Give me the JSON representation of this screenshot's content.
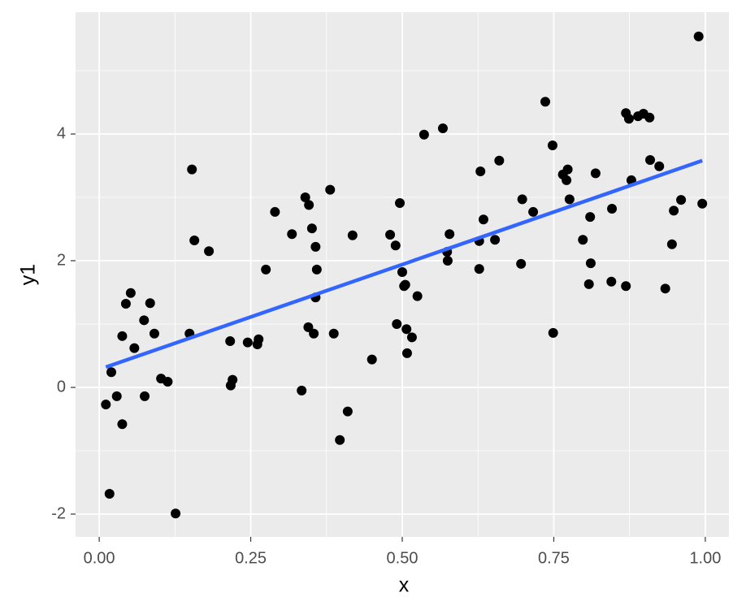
{
  "chart_data": {
    "type": "scatter",
    "x_label": "x",
    "y_label": "y1",
    "xlim": [
      -0.039,
      1.039
    ],
    "ylim": [
      -2.359,
      5.923
    ],
    "xticks": [
      {
        "value": 0,
        "label": "0.00"
      },
      {
        "value": 0.25,
        "label": "0.25"
      },
      {
        "value": 0.5,
        "label": "0.50"
      },
      {
        "value": 0.75,
        "label": "0.75"
      },
      {
        "value": 1,
        "label": "1.00"
      }
    ],
    "yticks": [
      -2,
      0,
      2,
      4
    ],
    "xminor": [
      0.125,
      0.375,
      0.625,
      0.875
    ],
    "yminor": [
      -1,
      1,
      3,
      5
    ],
    "grid": true,
    "color": "#000000",
    "x": [
      0.011,
      0.02,
      0.017,
      0.029,
      0.038,
      0.038,
      0.044,
      0.052,
      0.058,
      0.074,
      0.075,
      0.084,
      0.091,
      0.102,
      0.113,
      0.126,
      0.149,
      0.153,
      0.157,
      0.181,
      0.216,
      0.217,
      0.22,
      0.245,
      0.261,
      0.263,
      0.275,
      0.29,
      0.318,
      0.334,
      0.34,
      0.345,
      0.346,
      0.351,
      0.354,
      0.357,
      0.357,
      0.359,
      0.381,
      0.387,
      0.397,
      0.41,
      0.418,
      0.45,
      0.48,
      0.489,
      0.491,
      0.496,
      0.5,
      0.503,
      0.505,
      0.507,
      0.508,
      0.516,
      0.525,
      0.536,
      0.567,
      0.574,
      0.575,
      0.578,
      0.627,
      0.627,
      0.629,
      0.634,
      0.653,
      0.66,
      0.696,
      0.698,
      0.716,
      0.736,
      0.748,
      0.749,
      0.765,
      0.771,
      0.773,
      0.776,
      0.798,
      0.808,
      0.81,
      0.811,
      0.819,
      0.845,
      0.846,
      0.869,
      0.869,
      0.874,
      0.878,
      0.889,
      0.898,
      0.908,
      0.909,
      0.924,
      0.934,
      0.945,
      0.948,
      0.96,
      0.989,
      0.995
    ],
    "y": [
      -0.27,
      0.24,
      -1.68,
      -0.14,
      0.81,
      -0.58,
      1.32,
      1.49,
      0.62,
      1.06,
      -0.14,
      1.33,
      0.85,
      0.14,
      0.09,
      -1.99,
      0.85,
      3.44,
      2.32,
      2.15,
      0.73,
      0.03,
      0.12,
      0.71,
      0.68,
      0.76,
      1.86,
      2.77,
      2.42,
      -0.05,
      3.0,
      0.95,
      2.88,
      2.51,
      0.85,
      2.22,
      1.42,
      1.86,
      3.12,
      0.85,
      -0.83,
      -0.38,
      2.4,
      0.44,
      2.41,
      2.24,
      1.0,
      2.91,
      1.82,
      1.6,
      1.62,
      0.92,
      0.54,
      0.79,
      1.44,
      3.99,
      4.09,
      2.14,
      2.0,
      2.42,
      1.87,
      2.31,
      3.41,
      2.65,
      2.33,
      3.58,
      1.95,
      2.97,
      2.77,
      4.51,
      3.82,
      0.86,
      3.36,
      3.27,
      3.44,
      2.97,
      2.33,
      1.63,
      2.69,
      1.96,
      3.38,
      1.67,
      2.82,
      1.6,
      4.33,
      4.24,
      3.27,
      4.28,
      4.32,
      4.26,
      3.59,
      3.49,
      1.56,
      2.26,
      2.79,
      2.96,
      5.54,
      2.9
    ],
    "fit": {
      "x": [
        0.011,
        0.995
      ],
      "y": [
        0.32,
        3.58
      ],
      "color": "#3366FF"
    }
  }
}
